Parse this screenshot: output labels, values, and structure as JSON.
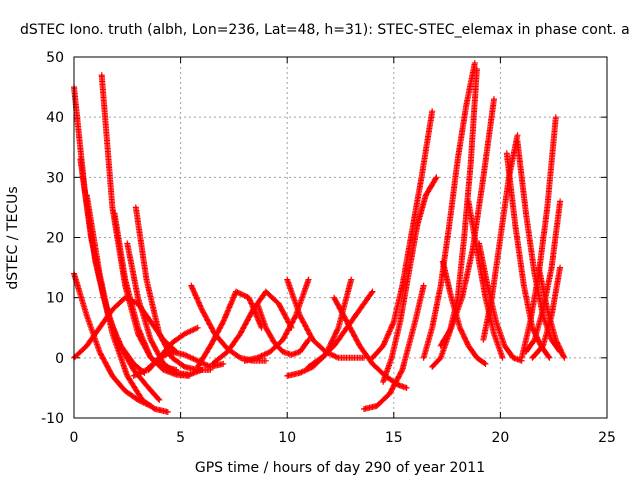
{
  "chart_data": {
    "type": "scatter",
    "title": "dSTEC Iono. truth (albh, Lon=236, Lat=48, h=31): STEC-STEC_elemax in phase cont. a",
    "xlabel": "GPS time / hours of day 290 of year 2011",
    "ylabel": "dSTEC  / TECUs",
    "xlim": [
      0,
      25
    ],
    "ylim": [
      -10,
      50
    ],
    "xticks": [
      0,
      5,
      10,
      15,
      20,
      25
    ],
    "yticks": [
      -10,
      0,
      10,
      20,
      30,
      40,
      50
    ],
    "grid": true,
    "marker": "plus",
    "color": "#ff0000",
    "series": [
      {
        "x": [
          0.0,
          0.5,
          1.0,
          1.6,
          2.2,
          2.8,
          3.3
        ],
        "y": [
          45,
          28,
          16,
          7,
          2,
          -1,
          -2.5
        ]
      },
      {
        "x": [
          0.3,
          0.8,
          1.4,
          2.0,
          2.8,
          3.5,
          4.0
        ],
        "y": [
          33,
          20,
          10,
          3,
          -2,
          -5,
          -7
        ]
      },
      {
        "x": [
          0.6,
          1.2,
          1.8,
          2.5,
          3.2,
          3.8,
          4.4
        ],
        "y": [
          27,
          14,
          4,
          -3,
          -7,
          -8.5,
          -9
        ]
      },
      {
        "x": [
          0.0,
          0.6,
          1.2,
          1.8,
          2.4,
          3.0,
          3.6
        ],
        "y": [
          14,
          7,
          1,
          -3,
          -5.5,
          -7,
          -8
        ]
      },
      {
        "x": [
          0.0,
          0.6,
          1.2,
          1.8,
          2.4,
          3.0,
          3.6,
          4.2,
          4.8
        ],
        "y": [
          0,
          2,
          5,
          8,
          10,
          9,
          6,
          3,
          1
        ]
      },
      {
        "x": [
          1.3,
          1.8,
          2.4,
          3.0,
          3.6,
          4.2,
          4.8
        ],
        "y": [
          47,
          25,
          12,
          4,
          0,
          -1.5,
          -2
        ]
      },
      {
        "x": [
          1.9,
          2.4,
          3.0,
          3.6,
          4.2,
          4.8,
          5.4
        ],
        "y": [
          24,
          13,
          5,
          0,
          -2,
          -2.8,
          -3
        ]
      },
      {
        "x": [
          2.5,
          3.0,
          3.6,
          4.2,
          4.8,
          5.4,
          6.0
        ],
        "y": [
          19,
          10,
          3,
          -1,
          -2.5,
          -2.8,
          -2
        ]
      },
      {
        "x": [
          2.9,
          3.4,
          4.0,
          4.6,
          5.2,
          5.8,
          6.4
        ],
        "y": [
          25,
          13,
          4,
          0,
          -1.5,
          -2,
          -2
        ]
      },
      {
        "x": [
          2.8,
          3.4,
          4.0,
          4.6,
          5.2,
          5.8
        ],
        "y": [
          -3,
          -2,
          0,
          2.5,
          4,
          5
        ]
      },
      {
        "x": [
          3.5,
          4.0,
          4.6,
          5.2,
          5.8,
          6.4,
          7.0
        ],
        "y": [
          -2,
          0,
          1,
          0.5,
          -0.5,
          -1.5,
          -1
        ]
      },
      {
        "x": [
          5.5,
          6.0,
          6.6,
          7.2,
          7.8,
          8.4,
          9.0
        ],
        "y": [
          12,
          8,
          4,
          1.5,
          0,
          -0.5,
          -0.5
        ]
      },
      {
        "x": [
          5.8,
          6.4,
          7.0,
          7.6,
          8.2,
          8.8
        ],
        "y": [
          -1.5,
          2,
          6,
          11,
          10,
          5
        ]
      },
      {
        "x": [
          6.5,
          7.2,
          7.8,
          8.4,
          9.0,
          9.6,
          10.2
        ],
        "y": [
          -1,
          1,
          4,
          8,
          11,
          9,
          5
        ]
      },
      {
        "x": [
          8.6,
          9.0,
          9.4,
          9.8,
          10.2,
          10.6,
          11.0
        ],
        "y": [
          9,
          5,
          2.5,
          1,
          0.5,
          1,
          3
        ]
      },
      {
        "x": [
          8.0,
          8.6,
          9.2,
          9.8,
          10.4,
          11.0
        ],
        "y": [
          -0.5,
          0,
          1,
          3,
          7,
          13
        ]
      },
      {
        "x": [
          10.0,
          10.6,
          11.2,
          11.8,
          12.4,
          13.0,
          13.6
        ],
        "y": [
          13,
          7,
          3,
          1,
          0,
          0,
          0
        ]
      },
      {
        "x": [
          10.0,
          10.6,
          11.2,
          11.8,
          12.4,
          13.0
        ],
        "y": [
          -3,
          -2.5,
          -1.5,
          0.5,
          5,
          13
        ]
      },
      {
        "x": [
          11.0,
          11.6,
          12.2,
          12.8,
          13.4,
          14.0
        ],
        "y": [
          -1.5,
          0,
          2,
          5,
          8,
          11
        ]
      },
      {
        "x": [
          12.2,
          12.8,
          13.4,
          14.0,
          14.6,
          15.2,
          15.6
        ],
        "y": [
          10,
          6,
          2,
          -1,
          -3,
          -4.5,
          -5
        ]
      },
      {
        "x": [
          13.6,
          14.2,
          14.8,
          15.4,
          16.0,
          16.4
        ],
        "y": [
          -8.5,
          -8,
          -6,
          -2,
          6,
          12
        ]
      },
      {
        "x": [
          14.0,
          14.5,
          15.0,
          15.4,
          15.8,
          16.3,
          16.8
        ],
        "y": [
          0,
          2,
          6,
          12,
          20,
          30,
          41
        ]
      },
      {
        "x": [
          14.5,
          14.9,
          15.3,
          15.7,
          16.1,
          16.5,
          17.0
        ],
        "y": [
          -4,
          0,
          6,
          14,
          22,
          27,
          30
        ]
      },
      {
        "x": [
          16.8,
          17.2,
          17.6,
          18.0,
          18.3,
          18.6,
          18.9
        ],
        "y": [
          -1.5,
          0,
          4,
          10,
          20,
          32,
          48
        ]
      },
      {
        "x": [
          16.4,
          16.8,
          17.2,
          17.6,
          18.0,
          18.4,
          18.8
        ],
        "y": [
          0,
          5,
          12,
          22,
          33,
          42,
          49
        ]
      },
      {
        "x": [
          17.2,
          17.7,
          18.2,
          18.7,
          19.2,
          19.7
        ],
        "y": [
          2,
          5,
          10,
          18,
          30,
          43
        ]
      },
      {
        "x": [
          18.5,
          18.9,
          19.3,
          19.7,
          20.1
        ],
        "y": [
          26,
          18,
          10,
          4,
          0
        ]
      },
      {
        "x": [
          17.3,
          17.7,
          18.1,
          18.5,
          18.9,
          19.3
        ],
        "y": [
          16,
          10,
          5,
          2,
          0,
          -1
        ]
      },
      {
        "x": [
          19.0,
          19.4,
          19.8,
          20.2,
          20.6,
          21.0
        ],
        "y": [
          19,
          12,
          6,
          2,
          0,
          -0.5
        ]
      },
      {
        "x": [
          19.2,
          19.6,
          20.0,
          20.4,
          20.8
        ],
        "y": [
          3,
          10,
          20,
          30,
          37
        ]
      },
      {
        "x": [
          20.3,
          20.7,
          21.1,
          21.5,
          21.9,
          22.3
        ],
        "y": [
          34,
          22,
          12,
          5,
          2,
          0
        ]
      },
      {
        "x": [
          20.8,
          21.2,
          21.6,
          22.0,
          22.4,
          22.8
        ],
        "y": [
          36,
          24,
          14,
          7,
          3,
          1
        ]
      },
      {
        "x": [
          21.0,
          21.4,
          21.8,
          22.2,
          22.6
        ],
        "y": [
          0,
          6,
          14,
          25,
          40
        ]
      },
      {
        "x": [
          21.2,
          21.6,
          22.0,
          22.4,
          22.8
        ],
        "y": [
          1,
          3,
          8,
          15,
          26
        ]
      },
      {
        "x": [
          21.8,
          22.2,
          22.6,
          23.0
        ],
        "y": [
          15,
          8,
          3,
          0
        ]
      },
      {
        "x": [
          21.5,
          22.0,
          22.4,
          22.8
        ],
        "y": [
          0,
          2,
          7,
          15
        ]
      }
    ]
  }
}
